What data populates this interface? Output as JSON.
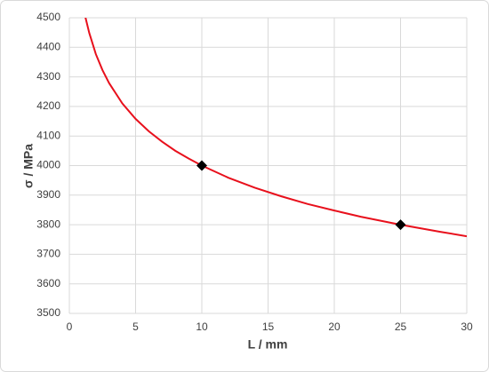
{
  "chart_data": {
    "type": "line",
    "xlabel": "L / mm",
    "ylabel": "σ / MPa",
    "series": [
      {
        "color": "#e8101c",
        "x": [
          1.2,
          1.5,
          2,
          2.5,
          3,
          4,
          5,
          6,
          7,
          8,
          9,
          10,
          12,
          14,
          16,
          18,
          20,
          22,
          25,
          28,
          30
        ],
        "values": [
          4504,
          4449,
          4377,
          4323,
          4279,
          4210,
          4158,
          4116,
          4081,
          4050,
          4024,
          4000,
          3959,
          3925,
          3896,
          3870,
          3848,
          3827,
          3800,
          3776,
          3761
        ]
      }
    ],
    "points": {
      "color": "#000000",
      "x": [
        10,
        25
      ],
      "values": [
        4000,
        3800
      ]
    },
    "xlim": [
      0,
      30
    ],
    "xticks": [
      0,
      5,
      10,
      15,
      20,
      25,
      30
    ],
    "ylim": [
      3500,
      4500
    ],
    "yticks": [
      3500,
      3600,
      3700,
      3800,
      3900,
      4000,
      4100,
      4200,
      4300,
      4400,
      4500
    ],
    "grid": true
  }
}
